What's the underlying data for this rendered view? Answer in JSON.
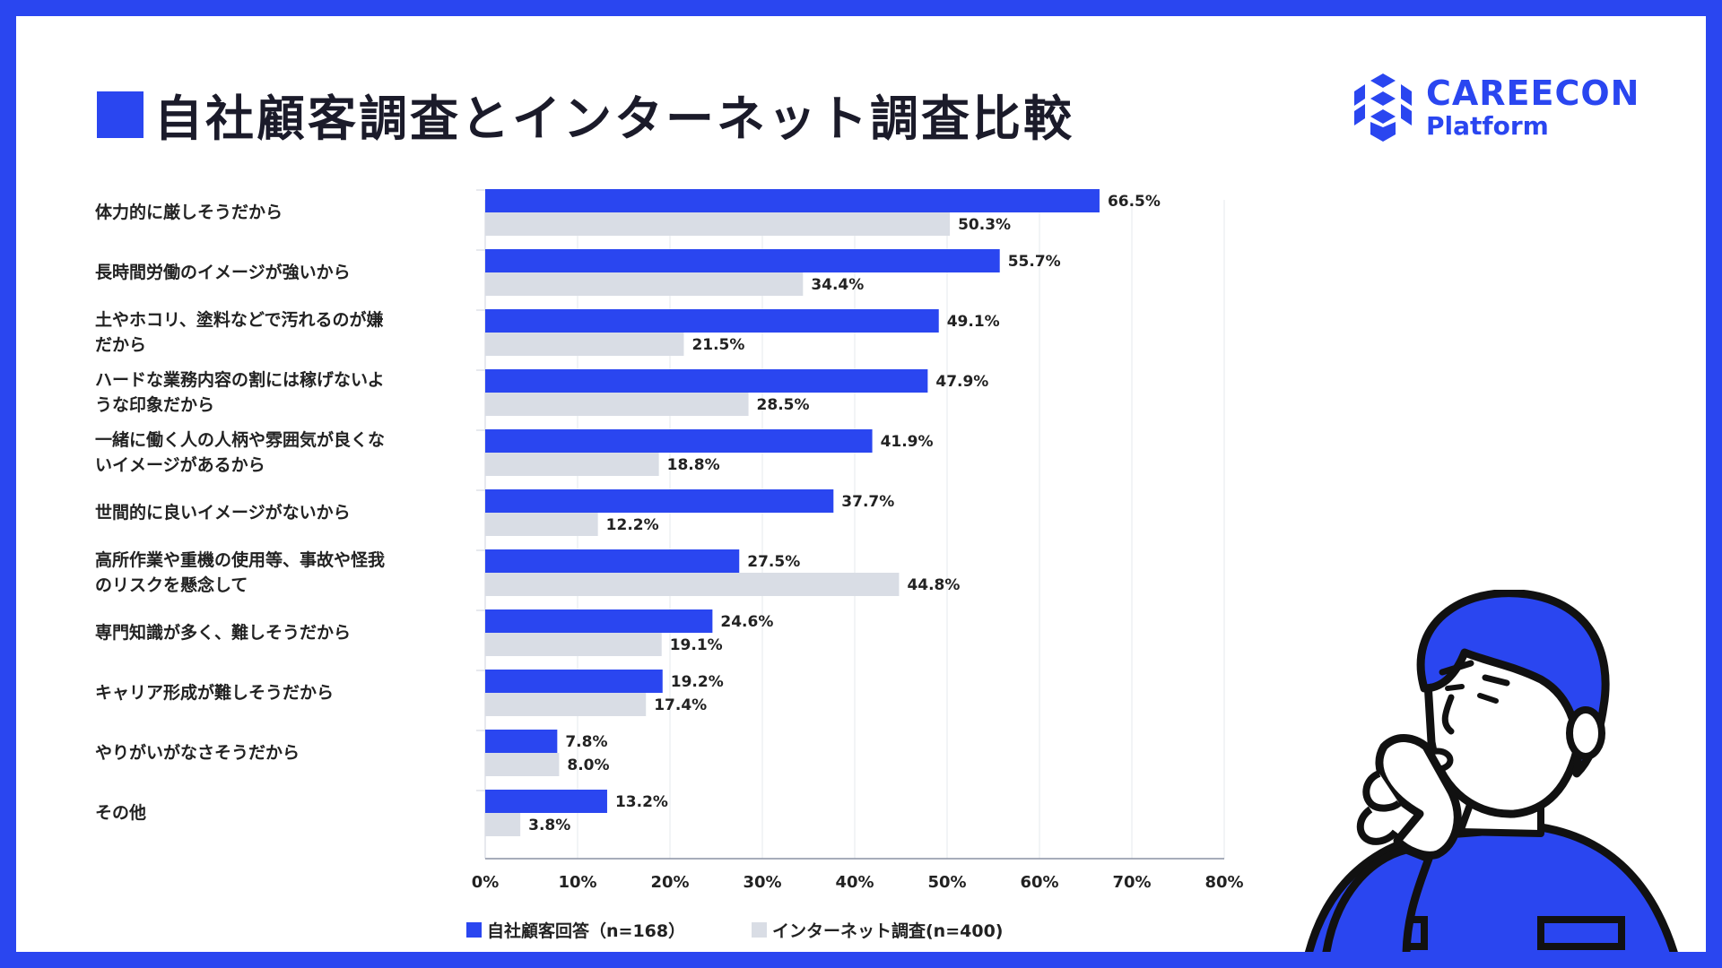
{
  "title": "自社顧客調査とインターネット調査比較",
  "logo": {
    "line1": "CAREECON",
    "line2": "Platform"
  },
  "colors": {
    "frame": "#2a46f0",
    "series1": "#2a46f0",
    "series2": "#d9dde5"
  },
  "chart_data": {
    "type": "bar",
    "orientation": "horizontal",
    "title": "自社顧客調査とインターネット調査比較",
    "categories": [
      "体力的に厳しそうだから",
      "長時間労働のイメージが強いから",
      "土やホコリ、塗料などで汚れるのが嫌\nだから",
      "ハードな業務内容の割には稼げないよ\nうな印象だから",
      "一緒に働く人の人柄や雰囲気が良くな\nいイメージがあるから",
      "世間的に良いイメージがないから",
      "高所作業や重機の使用等、事故や怪我\nのリスクを懸念して",
      "専門知識が多く、難しそうだから",
      "キャリア形成が難しそうだから",
      "やりがいがなさそうだから",
      "その他"
    ],
    "series": [
      {
        "name": "自社顧客回答（n=168）",
        "values": [
          66.5,
          55.7,
          49.1,
          47.9,
          41.9,
          37.7,
          27.5,
          24.6,
          19.2,
          7.8,
          13.2
        ]
      },
      {
        "name": "インターネット調査(n=400)",
        "values": [
          50.3,
          34.4,
          21.5,
          28.5,
          18.8,
          12.2,
          44.8,
          19.1,
          17.4,
          8.0,
          3.8
        ]
      }
    ],
    "value_suffix": "%",
    "xlim": [
      0,
      80
    ],
    "xticks": [
      0,
      10,
      20,
      30,
      40,
      50,
      60,
      70,
      80
    ],
    "xtick_labels": [
      "0%",
      "10%",
      "20%",
      "30%",
      "40%",
      "50%",
      "60%",
      "70%",
      "80%"
    ],
    "grid": true,
    "legend_position": "bottom-left",
    "xlabel": "",
    "ylabel": ""
  }
}
